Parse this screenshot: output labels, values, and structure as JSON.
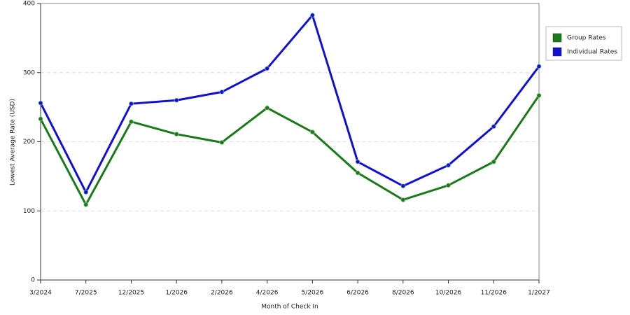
{
  "chart_data": {
    "type": "line",
    "x_label": "Month of Check In",
    "y_label": "Lowest Average Rate (USD)",
    "categories": [
      "3/2024",
      "7/2025",
      "12/2025",
      "1/2026",
      "2/2026",
      "4/2026",
      "5/2026",
      "6/2026",
      "8/2026",
      "10/2026",
      "11/2026",
      "1/2027"
    ],
    "series": [
      {
        "name": "Group Rates",
        "color": "#1a7a1a",
        "values": [
          233,
          109,
          229,
          211,
          199,
          249,
          214,
          155,
          116,
          137,
          171,
          267
        ]
      },
      {
        "name": "Individual Rates",
        "color": "#1010d0",
        "values": [
          256,
          127,
          255,
          260,
          272,
          306,
          383,
          171,
          136,
          166,
          222,
          309
        ]
      }
    ],
    "ylim": [
      0,
      400
    ],
    "yticks": [
      0,
      100,
      200,
      300,
      400
    ],
    "grid": true,
    "legend": "right"
  }
}
